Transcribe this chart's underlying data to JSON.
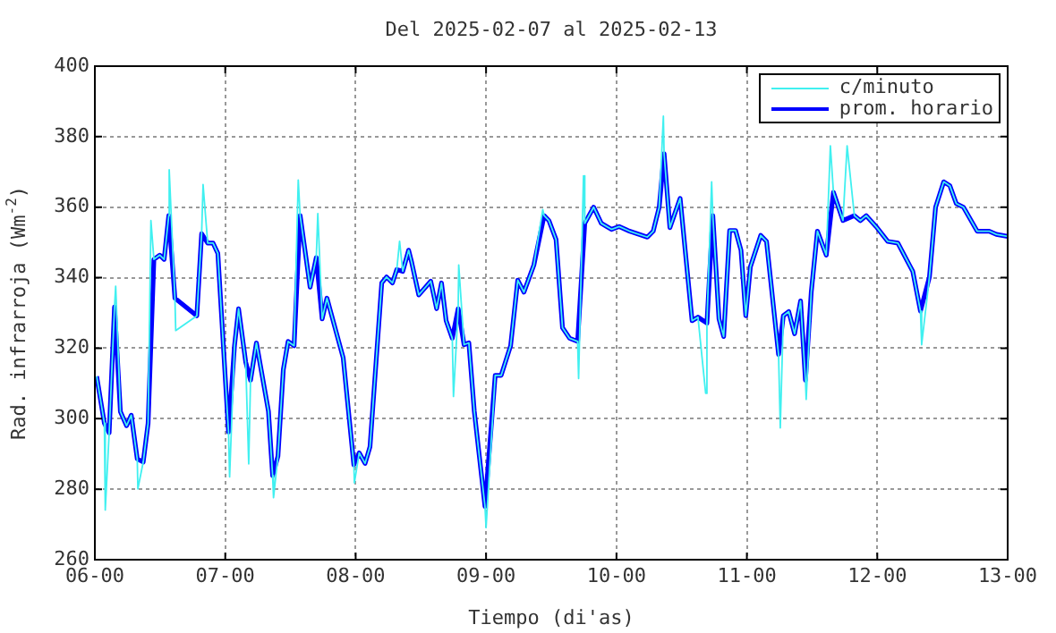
{
  "chart_data": {
    "type": "line",
    "title": "Del 2025-02-07 al 2025-02-13",
    "xlabel": "Tiempo (di'as)",
    "ylabel": "Rad. infrarroja (Wm$^{-2}$)",
    "xlim": [
      "2025-02-06",
      "2025-02-13"
    ],
    "xticks": [
      {
        "value": "2025-02-06",
        "label": "06-00"
      },
      {
        "value": "2025-02-07",
        "label": "07-00"
      },
      {
        "value": "2025-02-08",
        "label": "08-00"
      },
      {
        "value": "2025-02-09",
        "label": "09-00"
      },
      {
        "value": "2025-02-10",
        "label": "10-00"
      },
      {
        "value": "2025-02-11",
        "label": "11-00"
      },
      {
        "value": "2025-02-12",
        "label": "12-00"
      },
      {
        "value": "2025-02-13",
        "label": "13-00"
      }
    ],
    "ylim": [
      260,
      400
    ],
    "yticks": [
      260,
      280,
      300,
      320,
      340,
      360,
      380,
      400
    ],
    "grid": true,
    "legend": "top right",
    "marker": "none",
    "line_style": "solid",
    "series": [
      {
        "name": "c/minuto",
        "color": "#40f0f0",
        "x": [
          "2025-02-06T00:20",
          "2025-02-06T01:45",
          "2025-02-06T01:55",
          "2025-02-06T02:38",
          "2025-02-06T03:37",
          "2025-02-06T03:50",
          "2025-02-06T04:42",
          "2025-02-06T05:50",
          "2025-02-06T06:42",
          "2025-02-06T07:48",
          "2025-02-06T07:55",
          "2025-02-06T08:54",
          "2025-02-06T09:48",
          "2025-02-06T10:19",
          "2025-02-06T10:52",
          "2025-02-06T11:57",
          "2025-02-06T12:45",
          "2025-02-06T13:36",
          "2025-02-06T13:41",
          "2025-02-06T14:44",
          "2025-02-06T14:53",
          "2025-02-06T18:46",
          "2025-02-06T19:39",
          "2025-02-06T19:55",
          "2025-02-06T20:46",
          "2025-02-06T21:45",
          "2025-02-06T22:38",
          "2025-02-07T00:36",
          "2025-02-07T00:48",
          "2025-02-07T01:42",
          "2025-02-07T02:27",
          "2025-02-07T03:46",
          "2025-02-07T04:19",
          "2025-02-07T04:39",
          "2025-02-07T05:44",
          "2025-02-07T07:57",
          "2025-02-07T08:43",
          "2025-02-07T08:53",
          "2025-02-07T09:42",
          "2025-02-07T10:41",
          "2025-02-07T11:34",
          "2025-02-07T12:40",
          "2025-02-07T13:26",
          "2025-02-07T13:47",
          "2025-02-07T15:37",
          "2025-02-07T16:45",
          "2025-02-07T17:02",
          "2025-02-07T17:50",
          "2025-02-07T18:43",
          "2025-02-07T21:42",
          "2025-02-07T23:40",
          "2025-02-07T23:46",
          "2025-02-08T00:39",
          "2025-02-08T01:44",
          "2025-02-08T02:38",
          "2025-02-08T04:48",
          "2025-02-08T05:41",
          "2025-02-08T06:46",
          "2025-02-08T07:34",
          "2025-02-08T08:05",
          "2025-02-08T08:40",
          "2025-02-08T09:45",
          "2025-02-08T10:18",
          "2025-02-08T11:37",
          "2025-02-08T13:49",
          "2025-02-08T14:54",
          "2025-02-08T15:48",
          "2025-02-08T16:39",
          "2025-02-08T17:47",
          "2025-02-08T18:00",
          "2025-02-08T18:52",
          "2025-02-08T18:58",
          "2025-02-08T19:57",
          "2025-02-08T20:50",
          "2025-02-08T21:50",
          "2025-02-08T23:48",
          "2025-02-09T00:00",
          "2025-02-09T01:41",
          "2025-02-09T02:47",
          "2025-02-09T04:31",
          "2025-02-09T05:50",
          "2025-02-09T06:58",
          "2025-02-09T08:48",
          "2025-02-09T10:26",
          "2025-02-09T10:41",
          "2025-02-09T11:34",
          "2025-02-09T12:53",
          "2025-02-09T14:04",
          "2025-02-09T15:23",
          "2025-02-09T16:51",
          "2025-02-09T17:02",
          "2025-02-09T17:56",
          "2025-02-09T18:10",
          "2025-02-09T19:48",
          "2025-02-09T21:13",
          "2025-02-09T23:05",
          "2025-02-10T00:30",
          "2025-02-10T02:24",
          "2025-02-10T05:41",
          "2025-02-10T06:46",
          "2025-02-10T07:52",
          "2025-02-10T08:38",
          "2025-02-10T08:46",
          "2025-02-10T09:50",
          "2025-02-10T11:43",
          "2025-02-10T13:55",
          "2025-02-10T15:00",
          "2025-02-10T16:25",
          "2025-02-10T16:39",
          "2025-02-10T17:31",
          "2025-02-10T17:44",
          "2025-02-10T18:52",
          "2025-02-10T19:44",
          "2025-02-10T20:50",
          "2025-02-10T21:55",
          "2025-02-10T22:55",
          "2025-02-10T23:48",
          "2025-02-11T00:39",
          "2025-02-11T02:33",
          "2025-02-11T03:37",
          "2025-02-11T05:50",
          "2025-02-11T06:09",
          "2025-02-11T06:43",
          "2025-02-11T07:42",
          "2025-02-11T08:47",
          "2025-02-11T09:53",
          "2025-02-11T10:47",
          "2025-02-11T10:55",
          "2025-02-11T11:51",
          "2025-02-11T12:59",
          "2025-02-11T14:37",
          "2025-02-11T15:22",
          "2025-02-11T15:56",
          "2025-02-11T17:41",
          "2025-02-11T18:27",
          "2025-02-11T19:47",
          "2025-02-11T20:53",
          "2025-02-11T21:58",
          "2025-02-11T23:57",
          "2025-02-12T01:55",
          "2025-02-12T03:48",
          "2025-02-12T06:32",
          "2025-02-12T07:57",
          "2025-02-12T08:10",
          "2025-02-12T09:36",
          "2025-02-12T10:44",
          "2025-02-12T12:14",
          "2025-02-12T13:21",
          "2025-02-12T14:33",
          "2025-02-12T15:52",
          "2025-02-12T18:23",
          "2025-02-12T20:36",
          "2025-02-12T21:55",
          "2025-02-13T00:00"
        ],
        "values": [
          312,
          298.7,
          274.1,
          296,
          331.7,
          337.6,
          302,
          298,
          301,
          288.6,
          280.1,
          287.7,
          298.7,
          356.2,
          345.2,
          346.4,
          345.2,
          357.6,
          370.6,
          334.2,
          325,
          329.2,
          352.5,
          366.4,
          349.8,
          349.8,
          346.9,
          296.2,
          283.5,
          320.7,
          331.2,
          316,
          287.2,
          310.9,
          321.5,
          302.1,
          283.8,
          277.6,
          289.4,
          313.9,
          321.9,
          320.7,
          367.7,
          357.6,
          337.3,
          345.7,
          358.2,
          328.3,
          334.2,
          317.3,
          286.9,
          281.8,
          290.3,
          287.3,
          292,
          338.5,
          340.2,
          338.5,
          342.3,
          350.3,
          341.8,
          347.8,
          344.4,
          335.1,
          339,
          331.2,
          338.5,
          327.8,
          322.8,
          306.3,
          331.2,
          343.6,
          321,
          321.5,
          302.1,
          275.1,
          269.1,
          312.3,
          312.3,
          320.7,
          339.3,
          335.9,
          343.6,
          359.3,
          357.6,
          356.2,
          350.8,
          325.8,
          322.8,
          321.9,
          311.4,
          368.9,
          355.4,
          360,
          355.4,
          353.7,
          354.5,
          353.2,
          351.5,
          353.2,
          360,
          385.8,
          375.2,
          354.2,
          362.5,
          327.8,
          328.8,
          307.2,
          327.1,
          367.2,
          357.6,
          328.3,
          323.3,
          353.4,
          353.4,
          347.8,
          329.2,
          343.1,
          352,
          350.3,
          318.2,
          297.4,
          329.2,
          330.4,
          324.1,
          333.4,
          310.9,
          305.5,
          335.9,
          353.2,
          346.4,
          377.4,
          364.2,
          356.2,
          377.4,
          357.6,
          356.2,
          357.6,
          354.2,
          350.3,
          349.8,
          341.8,
          330.5,
          321,
          340.2,
          360,
          367.2,
          366.1,
          361,
          360,
          353.2,
          353.2,
          352.3,
          351.7
        ]
      },
      {
        "name": "prom. horario",
        "color": "#0000ff",
        "x": [
          "2025-02-06T00:20",
          "2025-02-06T01:45",
          "2025-02-06T02:38",
          "2025-02-06T03:37",
          "2025-02-06T04:42",
          "2025-02-06T05:50",
          "2025-02-06T06:42",
          "2025-02-06T07:48",
          "2025-02-06T08:54",
          "2025-02-06T09:48",
          "2025-02-06T10:52",
          "2025-02-06T11:57",
          "2025-02-06T12:45",
          "2025-02-06T13:36",
          "2025-02-06T14:44",
          "2025-02-06T18:46",
          "2025-02-06T19:39",
          "2025-02-06T20:46",
          "2025-02-06T21:45",
          "2025-02-06T22:38",
          "2025-02-07T00:36",
          "2025-02-07T01:42",
          "2025-02-07T02:27",
          "2025-02-07T03:46",
          "2025-02-07T04:39",
          "2025-02-07T05:44",
          "2025-02-07T07:57",
          "2025-02-07T08:43",
          "2025-02-07T09:42",
          "2025-02-07T10:41",
          "2025-02-07T11:34",
          "2025-02-07T12:40",
          "2025-02-07T13:47",
          "2025-02-07T15:37",
          "2025-02-07T16:45",
          "2025-02-07T17:50",
          "2025-02-07T18:43",
          "2025-02-07T21:42",
          "2025-02-07T23:40",
          "2025-02-08T00:39",
          "2025-02-08T01:44",
          "2025-02-08T02:38",
          "2025-02-08T04:48",
          "2025-02-08T05:41",
          "2025-02-08T06:46",
          "2025-02-08T07:34",
          "2025-02-08T08:40",
          "2025-02-08T09:45",
          "2025-02-08T10:18",
          "2025-02-08T11:37",
          "2025-02-08T13:49",
          "2025-02-08T14:54",
          "2025-02-08T15:48",
          "2025-02-08T16:39",
          "2025-02-08T17:47",
          "2025-02-08T18:52",
          "2025-02-08T19:57",
          "2025-02-08T20:50",
          "2025-02-08T21:50",
          "2025-02-08T23:48",
          "2025-02-09T01:41",
          "2025-02-09T02:47",
          "2025-02-09T04:31",
          "2025-02-09T05:50",
          "2025-02-09T06:58",
          "2025-02-09T08:48",
          "2025-02-09T10:41",
          "2025-02-09T11:34",
          "2025-02-09T12:53",
          "2025-02-09T14:04",
          "2025-02-09T15:23",
          "2025-02-09T16:51",
          "2025-02-09T18:10",
          "2025-02-09T19:48",
          "2025-02-09T21:13",
          "2025-02-09T23:05",
          "2025-02-10T00:30",
          "2025-02-10T02:24",
          "2025-02-10T05:41",
          "2025-02-10T06:46",
          "2025-02-10T07:52",
          "2025-02-10T08:46",
          "2025-02-10T09:50",
          "2025-02-10T11:43",
          "2025-02-10T13:55",
          "2025-02-10T15:00",
          "2025-02-10T16:39",
          "2025-02-10T17:44",
          "2025-02-10T18:52",
          "2025-02-10T19:44",
          "2025-02-10T20:50",
          "2025-02-10T21:55",
          "2025-02-10T22:55",
          "2025-02-10T23:48",
          "2025-02-11T00:39",
          "2025-02-11T02:33",
          "2025-02-11T03:37",
          "2025-02-11T05:50",
          "2025-02-11T06:43",
          "2025-02-11T07:42",
          "2025-02-11T08:47",
          "2025-02-11T09:53",
          "2025-02-11T10:47",
          "2025-02-11T11:51",
          "2025-02-11T12:59",
          "2025-02-11T14:37",
          "2025-02-11T15:56",
          "2025-02-11T17:41",
          "2025-02-11T19:47",
          "2025-02-11T20:53",
          "2025-02-11T21:58",
          "2025-02-11T23:57",
          "2025-02-12T01:55",
          "2025-02-12T03:48",
          "2025-02-12T06:32",
          "2025-02-12T07:57",
          "2025-02-12T09:36",
          "2025-02-12T10:44",
          "2025-02-12T12:14",
          "2025-02-12T13:21",
          "2025-02-12T14:33",
          "2025-02-12T15:52",
          "2025-02-12T18:23",
          "2025-02-12T20:36",
          "2025-02-12T21:55",
          "2025-02-13T00:00"
        ],
        "values": [
          312,
          298.7,
          296,
          331.7,
          302,
          298,
          301,
          288.6,
          287.7,
          298.7,
          345.2,
          346.4,
          345.2,
          357.6,
          334.2,
          329.2,
          352.5,
          349.8,
          349.8,
          346.9,
          296.2,
          320.7,
          331.2,
          316,
          310.9,
          321.5,
          302.1,
          283.8,
          289.4,
          313.9,
          321.9,
          320.7,
          357.6,
          337.3,
          345.7,
          328.3,
          334.2,
          317.3,
          286.9,
          290.3,
          287.3,
          292,
          338.5,
          340.2,
          338.5,
          342.3,
          341.8,
          347.8,
          344.4,
          335.1,
          339,
          331.2,
          338.5,
          327.8,
          322.8,
          331.2,
          321,
          321.5,
          302.1,
          275.1,
          312.3,
          312.3,
          320.7,
          339.3,
          335.9,
          343.6,
          357.6,
          356.2,
          350.8,
          325.8,
          322.8,
          321.9,
          355.4,
          360,
          355.4,
          353.7,
          354.5,
          353.2,
          351.5,
          353.2,
          360,
          375.2,
          354.2,
          362.5,
          327.8,
          328.8,
          327.1,
          357.6,
          328.3,
          323.3,
          353.4,
          353.4,
          347.8,
          329.2,
          343.1,
          352,
          350.3,
          318.2,
          329.2,
          330.4,
          324.1,
          333.4,
          310.9,
          335.9,
          353.2,
          346.4,
          364.2,
          356.2,
          357.6,
          356.2,
          357.6,
          354.2,
          350.3,
          349.8,
          341.8,
          330.5,
          340.2,
          360,
          367.2,
          366.1,
          361,
          360,
          353.2,
          353.2,
          352.3,
          351.7
        ]
      }
    ]
  }
}
